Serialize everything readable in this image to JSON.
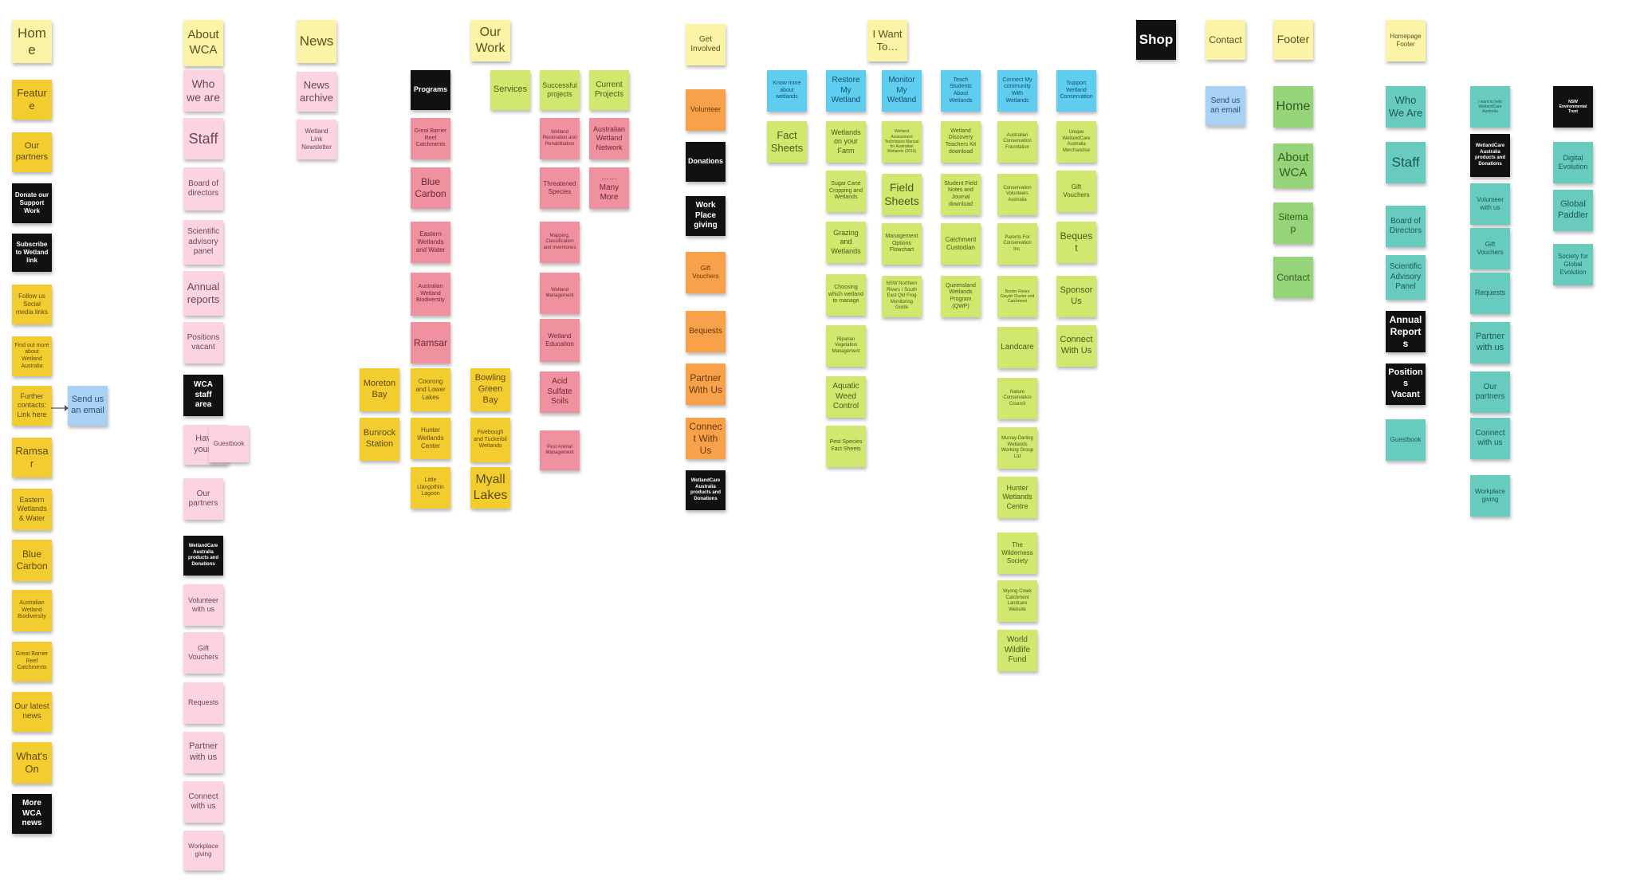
{
  "palette": {
    "header": "#fbf3a6",
    "home": "#f3cc30",
    "pink": "#fcd3e1",
    "red": "#f0919f",
    "lime": "#cfe86d",
    "orange": "#f7a14b",
    "cyan": "#5ecdf0",
    "blue": "#a9d1f4",
    "green": "#96d479",
    "teal": "#67cbbd",
    "black": "#111111"
  },
  "notes": [
    {
      "id": "home-header",
      "kind": "header",
      "text": "Home"
    },
    {
      "id": "home-feature",
      "kind": "home",
      "text": "Feature"
    },
    {
      "id": "home-our-partners",
      "kind": "home",
      "text": "Our partners"
    },
    {
      "id": "home-donate",
      "kind": "black",
      "text": "Donate our Support Work"
    },
    {
      "id": "home-subscribe",
      "kind": "black",
      "text": "Subscribe to Wetland link"
    },
    {
      "id": "home-follow-social",
      "kind": "home",
      "text": "Follow us Social media links"
    },
    {
      "id": "home-find-out-more",
      "kind": "home",
      "text": "Find out more about Wetland Australia"
    },
    {
      "id": "home-further-contacts",
      "kind": "home",
      "text": "Further contacts: Link here"
    },
    {
      "id": "home-send-email",
      "kind": "blue",
      "text": "Send us an email"
    },
    {
      "id": "home-ramsar",
      "kind": "home",
      "text": "Ramsar"
    },
    {
      "id": "home-eastern-wetlands",
      "kind": "home",
      "text": "Eastern Wetlands & Water"
    },
    {
      "id": "home-blue-carbon",
      "kind": "home",
      "text": "Blue Carbon"
    },
    {
      "id": "home-wetland-biodiversity",
      "kind": "home",
      "text": "Australian Wetland Biodiversity"
    },
    {
      "id": "home-barrier-reef",
      "kind": "home",
      "text": "Great Barrier Reef Catchments"
    },
    {
      "id": "home-latest-news",
      "kind": "home",
      "text": "Our latest news"
    },
    {
      "id": "home-whats-on",
      "kind": "home",
      "text": "What's On"
    },
    {
      "id": "home-more-news",
      "kind": "black",
      "text": "More WCA news"
    },
    {
      "id": "about-header",
      "kind": "header",
      "text": "About WCA"
    },
    {
      "id": "about-who-we-are",
      "kind": "pink",
      "text": "Who we are"
    },
    {
      "id": "about-staff",
      "kind": "pink",
      "text": "Staff"
    },
    {
      "id": "about-board",
      "kind": "pink",
      "text": "Board of directors"
    },
    {
      "id": "about-scientific",
      "kind": "pink",
      "text": "Scientific advisory panel"
    },
    {
      "id": "about-annual-reports",
      "kind": "pink",
      "text": "Annual reports"
    },
    {
      "id": "about-positions",
      "kind": "pink",
      "text": "Positions vacant"
    },
    {
      "id": "about-staff-area",
      "kind": "black",
      "text": "WCA staff area"
    },
    {
      "id": "about-have-your-say",
      "kind": "pink",
      "text": "Have your s"
    },
    {
      "id": "about-guestbook",
      "kind": "pink",
      "text": "Guestbook"
    },
    {
      "id": "about-our-partners",
      "kind": "pink",
      "text": "Our partners"
    },
    {
      "id": "about-products",
      "kind": "black",
      "text": "WetlandCare Australia products and Donations"
    },
    {
      "id": "about-volunteer",
      "kind": "pink",
      "text": "Volunteer with us"
    },
    {
      "id": "about-gift-vouchers",
      "kind": "pink",
      "text": "Gift Vouchers"
    },
    {
      "id": "about-requests",
      "kind": "pink",
      "text": "Requests"
    },
    {
      "id": "about-partner",
      "kind": "pink",
      "text": "Partner with us"
    },
    {
      "id": "about-connect",
      "kind": "pink",
      "text": "Connect with us"
    },
    {
      "id": "about-workplace",
      "kind": "pink",
      "text": "Workplace giving"
    },
    {
      "id": "news-header",
      "kind": "header",
      "text": "News"
    },
    {
      "id": "news-archive",
      "kind": "pink",
      "text": "News archive"
    },
    {
      "id": "news-newsletter",
      "kind": "pink",
      "text": "Wetland Link Newsletter"
    },
    {
      "id": "work-header",
      "kind": "header",
      "text": "Our Work"
    },
    {
      "id": "work-programs",
      "kind": "black",
      "text": "Programs"
    },
    {
      "id": "work-barrier-reef",
      "kind": "red",
      "text": "Great Barrier Reef Catchments"
    },
    {
      "id": "work-blue-carbon",
      "kind": "red",
      "text": "Blue Carbon"
    },
    {
      "id": "work-eastern-wetlands",
      "kind": "red",
      "text": "Eastern Wetlands and Water"
    },
    {
      "id": "work-biodiversity",
      "kind": "red",
      "text": "Australian Wetland Biodiversity"
    },
    {
      "id": "work-ramsar",
      "kind": "red",
      "text": "Ramsar"
    },
    {
      "id": "work-services",
      "kind": "lime",
      "text": "Services"
    },
    {
      "id": "work-successful",
      "kind": "lime",
      "text": "Successful projects"
    },
    {
      "id": "work-current",
      "kind": "lime",
      "text": "Current Projects"
    },
    {
      "id": "work-rehab",
      "kind": "red",
      "text": "Wetland Restoration and Rehabilitation"
    },
    {
      "id": "work-network",
      "kind": "red",
      "text": "Australian Wetland Network"
    },
    {
      "id": "work-threatened",
      "kind": "red",
      "text": "Threatened Species"
    },
    {
      "id": "work-many-more",
      "kind": "red",
      "text": "……Many More"
    },
    {
      "id": "work-mapping",
      "kind": "red",
      "text": "Mapping, Classification and Inventories"
    },
    {
      "id": "work-management",
      "kind": "red",
      "text": "Wetland Management"
    },
    {
      "id": "work-education",
      "kind": "red",
      "text": "Wetland Education"
    },
    {
      "id": "work-acid-soils",
      "kind": "red",
      "text": "Acid Sulfate Soils"
    },
    {
      "id": "work-pest-animal",
      "kind": "red",
      "text": "Pest Animal Management"
    },
    {
      "id": "work-moreton",
      "kind": "home",
      "text": "Moreton Bay"
    },
    {
      "id": "work-bunrock",
      "kind": "home",
      "text": "Bunrock Station"
    },
    {
      "id": "work-coorong",
      "kind": "home",
      "text": "Coorong and Lower Lakes"
    },
    {
      "id": "work-hunter",
      "kind": "home",
      "text": "Hunter Wetlands Center"
    },
    {
      "id": "work-little-lagoon",
      "kind": "home",
      "text": "Little Llangothlin Lagoon"
    },
    {
      "id": "work-bowling-green",
      "kind": "home",
      "text": "Bowling Green Bay"
    },
    {
      "id": "work-fivebough",
      "kind": "home",
      "text": "Fivebough and Tuckerbil Wetlands"
    },
    {
      "id": "work-myall",
      "kind": "home",
      "text": "Myall Lakes"
    },
    {
      "id": "involved-header",
      "kind": "header",
      "text": "Get Involved"
    },
    {
      "id": "involved-volunteer",
      "kind": "orange",
      "text": "Volunteer"
    },
    {
      "id": "involved-donations",
      "kind": "black",
      "text": "Donations"
    },
    {
      "id": "involved-workplace",
      "kind": "black",
      "text": "Work Place giving"
    },
    {
      "id": "involved-gift",
      "kind": "orange",
      "text": "Gift Vouchers"
    },
    {
      "id": "involved-bequests",
      "kind": "orange",
      "text": "Bequests"
    },
    {
      "id": "involved-partner",
      "kind": "orange",
      "text": "Partner With Us"
    },
    {
      "id": "involved-connect",
      "kind": "orange",
      "text": "Connect With Us"
    },
    {
      "id": "involved-products",
      "kind": "black",
      "text": "WetlandCare Australia products and Donations"
    },
    {
      "id": "want-header",
      "kind": "header",
      "text": "I Want To…"
    },
    {
      "id": "want-know-more",
      "kind": "cyan",
      "text": "Know more about wetlands"
    },
    {
      "id": "want-fact-sheets",
      "kind": "lime",
      "text": "Fact Sheets"
    },
    {
      "id": "want-restore",
      "kind": "cyan",
      "text": "Restore My Wetland"
    },
    {
      "id": "want-farm",
      "kind": "lime",
      "text": "Wetlands on your Farm"
    },
    {
      "id": "want-sugar-cane",
      "kind": "lime",
      "text": "Sugar Cane Cropping and Wetlands"
    },
    {
      "id": "want-grazing",
      "kind": "lime",
      "text": "Grazing and Wetlands"
    },
    {
      "id": "want-choosing",
      "kind": "lime",
      "text": "Choosing which wetland to manage"
    },
    {
      "id": "want-riparian",
      "kind": "lime",
      "text": "Riparian Vegetation Management"
    },
    {
      "id": "want-aquatic-weed",
      "kind": "lime",
      "text": "Aquatic Weed Control"
    },
    {
      "id": "want-pest-species",
      "kind": "lime",
      "text": "Pest Species Fact Sheets"
    },
    {
      "id": "want-monitor",
      "kind": "cyan",
      "text": "Monitor My Wetland"
    },
    {
      "id": "want-monitoring-tech",
      "kind": "lime",
      "text": "Wetland Assessment Techniques Manual for Australian Wetlands (2016)"
    },
    {
      "id": "want-field-sheets",
      "kind": "lime",
      "text": "Field Sheets"
    },
    {
      "id": "want-mgmt-flowchart",
      "kind": "lime",
      "text": "Management Options Flowchart"
    },
    {
      "id": "want-nsw-guide",
      "kind": "lime",
      "text": "NSW Northern Rivers / South East Qld Frog Monitoring Guide"
    },
    {
      "id": "want-teach",
      "kind": "cyan",
      "text": "Teach Students About Wetlands"
    },
    {
      "id": "want-teachers-kit",
      "kind": "lime",
      "text": "Wetland Discovery Teachers Kit download"
    },
    {
      "id": "want-student-notes",
      "kind": "lime",
      "text": "Student Field Notes and Journal download"
    },
    {
      "id": "want-custodian",
      "kind": "lime",
      "text": "Catchment Custodian"
    },
    {
      "id": "want-qld-program",
      "kind": "lime",
      "text": "Queensland Wetlands Program (QWP)"
    },
    {
      "id": "want-connect-community",
      "kind": "cyan",
      "text": "Connect My community With Wetlands"
    },
    {
      "id": "want-acf",
      "kind": "lime",
      "text": "Australian Conservation Foundation"
    },
    {
      "id": "want-cva",
      "kind": "lime",
      "text": "Conservation Volunteers Australia"
    },
    {
      "id": "want-pca",
      "kind": "lime",
      "text": "Parents For Conservation Inc."
    },
    {
      "id": "want-border-rivers",
      "kind": "lime",
      "text": "Border Rivers Gwydir Cluster and Catchment"
    },
    {
      "id": "want-landcare",
      "kind": "lime",
      "text": "Landcare"
    },
    {
      "id": "want-ncc",
      "kind": "lime",
      "text": "Nature Conservation Council"
    },
    {
      "id": "want-murray",
      "kind": "lime",
      "text": "Murray-Darling Wetlands Working Group Ltd"
    },
    {
      "id": "want-hunter-centre",
      "kind": "lime",
      "text": "Hunter Wetlands Centre"
    },
    {
      "id": "want-wilderness",
      "kind": "lime",
      "text": "The Wilderness Society"
    },
    {
      "id": "want-wyong",
      "kind": "lime",
      "text": "Wyong Creek Catchment Landcare Website"
    },
    {
      "id": "want-wwf",
      "kind": "lime",
      "text": "World Wildlife Fund"
    },
    {
      "id": "want-support",
      "kind": "cyan",
      "text": "Support Wetland Conservation"
    },
    {
      "id": "want-unique",
      "kind": "lime",
      "text": "Unique WetlandCare Australia Merchandise"
    },
    {
      "id": "want-gift",
      "kind": "lime",
      "text": "Gift Vouchers"
    },
    {
      "id": "want-bequest",
      "kind": "lime",
      "text": "Bequest"
    },
    {
      "id": "want-sponsor",
      "kind": "lime",
      "text": "Sponsor Us"
    },
    {
      "id": "want-connect-us",
      "kind": "lime",
      "text": "Connect With Us"
    },
    {
      "id": "shop-header",
      "kind": "black",
      "text": "Shop"
    },
    {
      "id": "contact-header",
      "kind": "header",
      "text": "Contact"
    },
    {
      "id": "contact-email",
      "kind": "blue",
      "text": "Send us an email"
    },
    {
      "id": "footer-header",
      "kind": "header",
      "text": "Footer"
    },
    {
      "id": "footer-home",
      "kind": "green",
      "text": "Home"
    },
    {
      "id": "footer-about",
      "kind": "green",
      "text": "About WCA"
    },
    {
      "id": "footer-sitemap",
      "kind": "green",
      "text": "Sitemap"
    },
    {
      "id": "footer-contact",
      "kind": "green",
      "text": "Contact"
    },
    {
      "id": "hp-header",
      "kind": "header",
      "text": "Homepage Footer"
    },
    {
      "id": "hp-who",
      "kind": "teal",
      "text": "Who We Are"
    },
    {
      "id": "hp-staff",
      "kind": "teal",
      "text": "Staff"
    },
    {
      "id": "hp-board",
      "kind": "teal",
      "text": "Board of Directors"
    },
    {
      "id": "hp-scientific",
      "kind": "teal",
      "text": "Scientific Advisory Panel"
    },
    {
      "id": "hp-annual",
      "kind": "black",
      "text": "Annual Reports"
    },
    {
      "id": "hp-positions",
      "kind": "black",
      "text": "Positions Vacant"
    },
    {
      "id": "hp-guestbook",
      "kind": "teal",
      "text": "Guestbook"
    },
    {
      "id": "hp-help",
      "kind": "teal",
      "text": "I want to help WetlandCare Australia"
    },
    {
      "id": "hp-products",
      "kind": "black",
      "text": "WetlandCare Australia products and Donations"
    },
    {
      "id": "hp-volunteer",
      "kind": "teal",
      "text": "Volunteer with us"
    },
    {
      "id": "hp-gift",
      "kind": "teal",
      "text": "Gift Vouchers"
    },
    {
      "id": "hp-requests",
      "kind": "teal",
      "text": "Requests"
    },
    {
      "id": "hp-partner",
      "kind": "teal",
      "text": "Partner with us"
    },
    {
      "id": "hp-partners",
      "kind": "teal",
      "text": "Our partners"
    },
    {
      "id": "hp-connect",
      "kind": "teal",
      "text": "Connect with us"
    },
    {
      "id": "hp-workplace",
      "kind": "teal",
      "text": "Workplace giving"
    },
    {
      "id": "hp-nsw-trust",
      "kind": "black",
      "text": "NSW Environmental Trust"
    },
    {
      "id": "hp-digital",
      "kind": "teal",
      "text": "Digital Evolution"
    },
    {
      "id": "hp-paddler",
      "kind": "teal",
      "text": "Global Paddler"
    },
    {
      "id": "hp-society",
      "kind": "teal",
      "text": "Society for Global Evolution"
    }
  ]
}
